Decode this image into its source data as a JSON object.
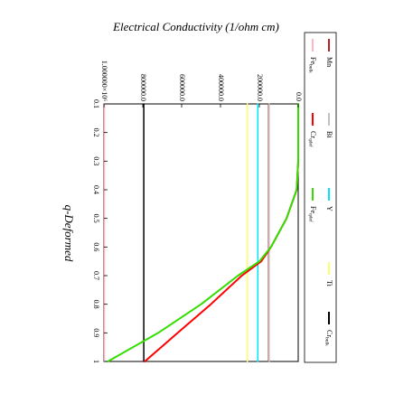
{
  "chart_data": {
    "type": "line",
    "orientation": "rotated-90-clockwise",
    "xlabel": "q-Deformed",
    "ylabel": "Electrical Conductivity (1/ohm cm)",
    "xlim": [
      0.1,
      1.0
    ],
    "ylim": [
      0,
      1000000
    ],
    "x_ticks": [
      {
        "value": 0.1,
        "label": "0.1"
      },
      {
        "value": 0.2,
        "label": "0.2"
      },
      {
        "value": 0.3,
        "label": "0.3"
      },
      {
        "value": 0.4,
        "label": "0.4"
      },
      {
        "value": 0.5,
        "label": "0.5"
      },
      {
        "value": 0.6,
        "label": "0.6"
      },
      {
        "value": 0.7,
        "label": "0.7"
      },
      {
        "value": 0.8,
        "label": "0.8"
      },
      {
        "value": 0.9,
        "label": "0.9"
      },
      {
        "value": 1.0,
        "label": "1"
      }
    ],
    "y_ticks": [
      {
        "value": 0,
        "label": "0.0"
      },
      {
        "value": 200000,
        "label": "200000.0"
      },
      {
        "value": 400000,
        "label": "400000.0"
      },
      {
        "value": 600000,
        "label": "600000.0"
      },
      {
        "value": 800000,
        "label": "800000.0"
      },
      {
        "value": 1000000,
        "label": "1.000000×10⁶"
      }
    ],
    "legend_position": "top",
    "grid": false,
    "series": [
      {
        "name": "Mn",
        "label_main": "Mn",
        "label_sub": "",
        "color": "#b22222",
        "x": [
          0.1,
          1.0
        ],
        "y": [
          152000,
          152000
        ]
      },
      {
        "name": "Bi",
        "label_main": "Bi",
        "label_sub": "",
        "color": "#c0c0c0",
        "x": [
          0.1,
          1.0
        ],
        "y": [
          150000,
          150000
        ]
      },
      {
        "name": "Y",
        "label_main": "Y",
        "label_sub": "",
        "color": "#00e5ff",
        "x": [
          0.1,
          1.0
        ],
        "y": [
          208000,
          208000
        ]
      },
      {
        "name": "Ti",
        "label_main": "Ti",
        "label_sub": "",
        "color": "#ffff66",
        "x": [
          0.1,
          1.0
        ],
        "y": [
          262000,
          262000
        ]
      },
      {
        "name": "Cr_bulk",
        "label_main": "Cr",
        "label_sub": "bulk",
        "color": "#000000",
        "x": [
          0.1,
          1.0
        ],
        "y": [
          795000,
          795000
        ]
      },
      {
        "name": "Fe_bulk",
        "label_main": "Fe",
        "label_sub": "bulk",
        "color": "#ffb6c1",
        "x": [
          0.1,
          1.0
        ],
        "y": [
          997000,
          997000
        ]
      },
      {
        "name": "Cr_qdef",
        "label_main": "Cr",
        "label_sub": "qdef",
        "color": "#ff0000",
        "x": [
          0.1,
          0.2,
          0.3,
          0.4,
          0.5,
          0.6,
          0.65,
          0.7,
          0.8,
          0.9,
          1.0
        ],
        "y": [
          0,
          0,
          0,
          8000,
          60000,
          140000,
          190000,
          290000,
          450000,
          620000,
          790000
        ]
      },
      {
        "name": "Fe_qdef",
        "label_main": "Fe",
        "label_sub": "qdef",
        "color": "#33dd00",
        "x": [
          0.1,
          0.2,
          0.3,
          0.4,
          0.5,
          0.6,
          0.65,
          0.7,
          0.8,
          0.9,
          1.0
        ],
        "y": [
          0,
          0,
          0,
          8000,
          60000,
          140000,
          200000,
          310000,
          500000,
          720000,
          980000
        ]
      }
    ],
    "legend": [
      {
        "series": "Mn"
      },
      {
        "series": "Bi"
      },
      {
        "series": "Y"
      },
      {
        "series": "Ti"
      },
      {
        "series": "Cr_bulk"
      },
      {
        "series": "Fe_bulk"
      },
      {
        "series": "Cr_qdef"
      },
      {
        "series": "Fe_qdef"
      }
    ]
  }
}
